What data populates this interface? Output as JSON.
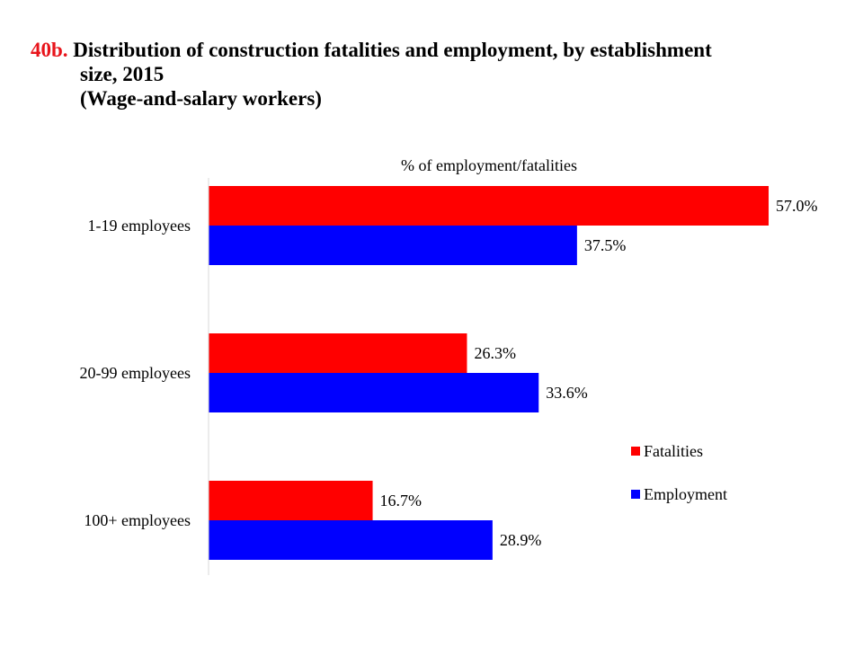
{
  "header": {
    "figure_number": "40b.",
    "title_line1": "Distribution of construction fatalities and employment, by establishment",
    "title_line2": "size, 2015",
    "title_line3": "(Wage-and-salary workers)"
  },
  "chart_data": {
    "type": "bar",
    "orientation": "horizontal",
    "axis_title": "% of employment/fatalities",
    "categories": [
      "1-19 employees",
      "20-99 employees",
      "100+ employees"
    ],
    "series": [
      {
        "name": "Fatalities",
        "color": "#ff0000",
        "values": [
          57.0,
          26.3,
          16.7
        ],
        "labels": [
          "57.0%",
          "26.3%",
          "16.7%"
        ]
      },
      {
        "name": "Employment",
        "color": "#0000ff",
        "values": [
          37.5,
          33.6,
          28.9
        ],
        "labels": [
          "37.5%",
          "33.6%",
          "28.9%"
        ]
      }
    ],
    "xlim": [
      0,
      60
    ],
    "grid": false,
    "legend_position": "right"
  }
}
